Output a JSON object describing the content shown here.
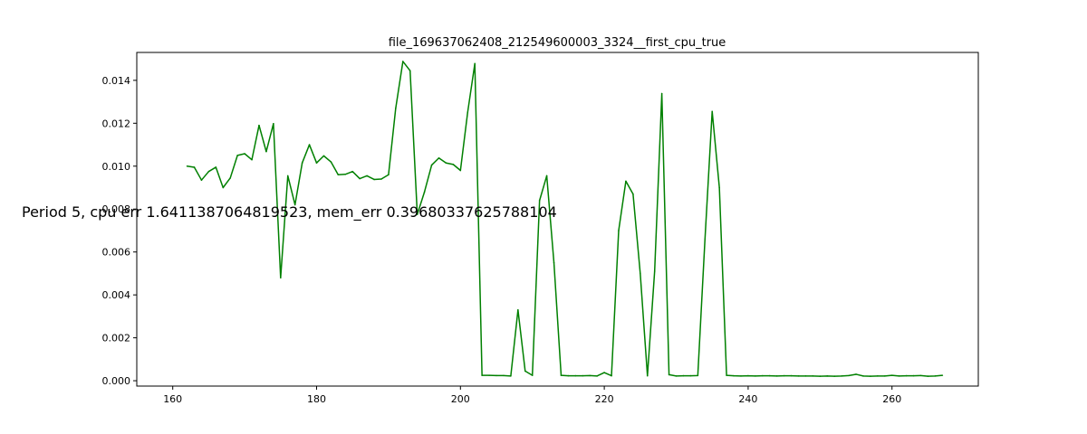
{
  "chart_data": {
    "type": "line",
    "title": "file_169637062408_212549600003_3324__first_cpu_true",
    "xlabel": "",
    "ylabel": "",
    "xlim": [
      155,
      272
    ],
    "ylim": [
      -0.00025,
      0.0153
    ],
    "xticks": [
      160,
      180,
      200,
      220,
      240,
      260
    ],
    "yticks": [
      0.0,
      0.002,
      0.004,
      0.006,
      0.008,
      0.01,
      0.012,
      0.014
    ],
    "ytick_labels": [
      "0.000",
      "0.002",
      "0.004",
      "0.006",
      "0.008",
      "0.010",
      "0.012",
      "0.014"
    ],
    "grid": false,
    "series": [
      {
        "color": "#008000",
        "x": [
          162,
          163,
          164,
          165,
          166,
          167,
          168,
          169,
          170,
          171,
          172,
          173,
          174,
          175,
          176,
          177,
          178,
          179,
          180,
          181,
          182,
          183,
          184,
          185,
          186,
          187,
          188,
          189,
          190,
          191,
          192,
          193,
          194,
          195,
          196,
          197,
          198,
          199,
          200,
          201,
          202,
          203,
          204,
          205,
          206,
          207,
          208,
          209,
          210,
          211,
          212,
          213,
          214,
          215,
          216,
          217,
          218,
          219,
          220,
          221,
          222,
          223,
          224,
          225,
          226,
          227,
          228,
          229,
          230,
          231,
          232,
          233,
          234,
          235,
          236,
          237,
          238,
          239,
          240,
          241,
          242,
          243,
          244,
          245,
          246,
          247,
          248,
          249,
          250,
          251,
          252,
          253,
          254,
          255,
          256,
          257,
          258,
          259,
          260,
          261,
          262,
          263,
          264,
          265,
          266,
          267
        ],
        "y": [
          0.01,
          0.00995,
          0.00935,
          0.00975,
          0.00995,
          0.009,
          0.00945,
          0.0105,
          0.01058,
          0.0103,
          0.0119,
          0.01068,
          0.01198,
          0.0048,
          0.00955,
          0.0082,
          0.01015,
          0.011,
          0.01015,
          0.01048,
          0.0102,
          0.0096,
          0.00962,
          0.00975,
          0.00942,
          0.00955,
          0.00938,
          0.0094,
          0.0096,
          0.0127,
          0.01488,
          0.01445,
          0.00775,
          0.0088,
          0.01005,
          0.01038,
          0.01015,
          0.01008,
          0.0098,
          0.0125,
          0.01478,
          0.00025,
          0.00025,
          0.00024,
          0.00024,
          0.00022,
          0.0033,
          0.00045,
          0.00025,
          0.0084,
          0.00955,
          0.0055,
          0.00025,
          0.00023,
          0.00023,
          0.00023,
          0.00024,
          0.00022,
          0.00038,
          0.00023,
          0.007,
          0.0093,
          0.0087,
          0.005,
          0.00023,
          0.0051,
          0.01338,
          0.00028,
          0.00022,
          0.00023,
          0.00023,
          0.00024,
          0.0066,
          0.01255,
          0.009,
          0.00025,
          0.00023,
          0.00022,
          0.00023,
          0.00022,
          0.00023,
          0.00023,
          0.00022,
          0.00023,
          0.00023,
          0.00022,
          0.00022,
          0.00022,
          0.00021,
          0.00022,
          0.00021,
          0.00022,
          0.00024,
          0.0003,
          0.00022,
          0.00021,
          0.00022,
          0.00022,
          0.00025,
          0.00022,
          0.00023,
          0.00023,
          0.00024,
          0.00021,
          0.00022,
          0.00025
        ]
      }
    ],
    "annotation": "Period 5, cpu err 1.6411387064819523, mem_err 0.39680337625788104"
  }
}
